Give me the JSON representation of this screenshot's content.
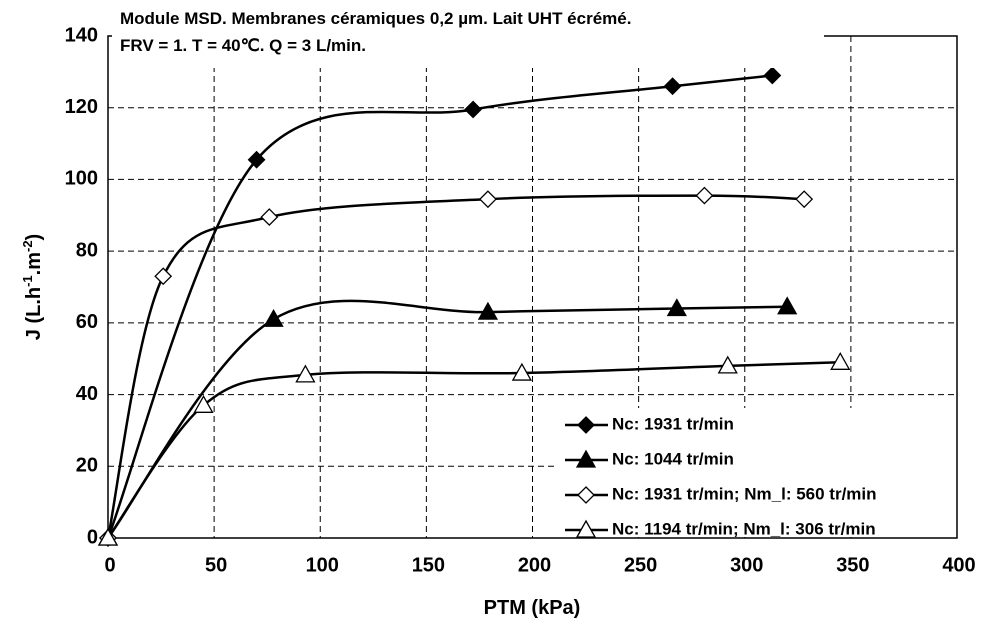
{
  "chart_data": {
    "type": "scatter",
    "title": [
      "Module MSD. Membranes céramiques 0,2 µm. Lait UHT écrémé.",
      "FRV = 1. T = 40℃. Q = 3 L/min."
    ],
    "xlabel": "PTM (kPa)",
    "ylabel": [
      "J (L.h",
      "-1",
      ".m",
      "-2",
      ")"
    ],
    "xlim": [
      0,
      400
    ],
    "xticks": [
      0,
      50,
      100,
      150,
      200,
      250,
      300,
      350,
      400
    ],
    "ylim": [
      0,
      140
    ],
    "yticks": [
      0,
      20,
      40,
      60,
      80,
      100,
      120,
      140
    ],
    "grid": true,
    "smooth": true,
    "legend": "lower right",
    "series": [
      {
        "name": "Nc: 1931 tr/min",
        "color": "#000000",
        "marker": "diamond",
        "filled": true,
        "x": [
          0,
          70,
          172,
          266,
          313
        ],
        "values": [
          0,
          105.5,
          119.5,
          126,
          129
        ]
      },
      {
        "name": "Nc: 1044 tr/min",
        "color": "#000000",
        "marker": "triangle",
        "filled": true,
        "x": [
          0,
          78,
          179,
          268,
          320
        ],
        "values": [
          0,
          61,
          63,
          64,
          64.5
        ]
      },
      {
        "name": "Nc: 1931 tr/min; Nm_l: 560 tr/min",
        "color": "#000000",
        "marker": "diamond",
        "filled": false,
        "x": [
          0,
          26,
          76,
          179,
          281,
          328
        ],
        "values": [
          0,
          73,
          89.5,
          94.5,
          95.5,
          94.5
        ]
      },
      {
        "name": "Nc: 1194 tr/min; Nm_l: 306 tr/min",
        "color": "#000000",
        "marker": "triangle",
        "filled": false,
        "x": [
          0,
          45,
          93,
          195,
          292,
          345
        ],
        "values": [
          0,
          37,
          45.5,
          46,
          48,
          49
        ]
      }
    ]
  }
}
